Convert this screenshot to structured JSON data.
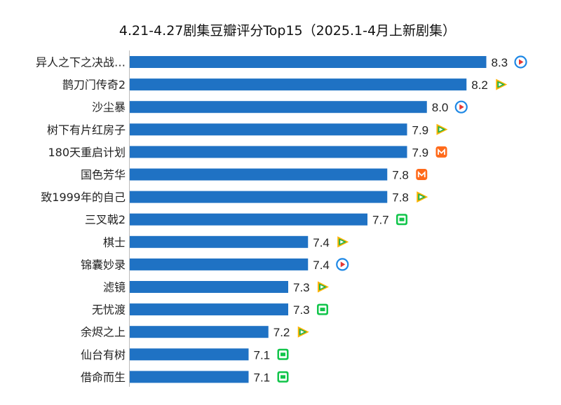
{
  "chart_data": {
    "type": "bar",
    "orientation": "horizontal",
    "title": "4.21-4.27剧集豆瓣评分Top15（2025.1-4月上新剧集）",
    "xlabel": "",
    "ylabel": "",
    "grid": false,
    "legend": "none",
    "categories": [
      "异人之下之决战…",
      "鹊刀门传奇2",
      "沙尘暴",
      "树下有片红房子",
      "180天重启计划",
      "国色芳华",
      "致1999年的自己",
      "三叉戟2",
      "棋士",
      "锦囊妙录",
      "滤镜",
      "无忧渡",
      "余烬之上",
      "仙台有树",
      "借命而生"
    ],
    "values": [
      8.3,
      8.2,
      8.0,
      7.9,
      7.9,
      7.8,
      7.8,
      7.7,
      7.4,
      7.4,
      7.3,
      7.3,
      7.2,
      7.1,
      7.1
    ],
    "value_labels": [
      "8.3",
      "8.2",
      "8.0",
      "7.9",
      "7.9",
      "7.8",
      "7.8",
      "7.7",
      "7.4",
      "7.4",
      "7.3",
      "7.3",
      "7.2",
      "7.1",
      "7.1"
    ],
    "platform_icons": [
      "youku-icon",
      "tencent-video-icon",
      "youku-icon",
      "tencent-video-icon",
      "mango-tv-icon",
      "mango-tv-icon",
      "tencent-video-icon",
      "iqiyi-icon",
      "tencent-video-icon",
      "youku-icon",
      "tencent-video-icon",
      "iqiyi-icon",
      "tencent-video-icon",
      "iqiyi-icon",
      "iqiyi-icon"
    ],
    "bar_color": "#1f72c4",
    "icon_colors": {
      "youku-icon": "#1e88e5",
      "tencent-video-icon": "#21b24b",
      "mango-tv-icon": "#ff6a1a",
      "iqiyi-icon": "#12c54b"
    }
  }
}
